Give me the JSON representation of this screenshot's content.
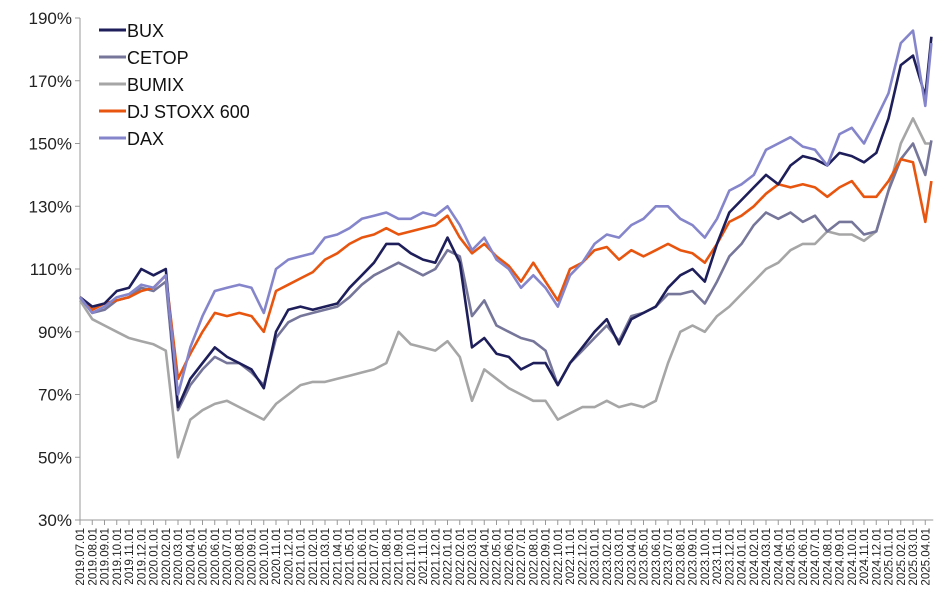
{
  "chart_data": {
    "type": "line",
    "title": "",
    "xlabel": "",
    "ylabel": "",
    "ylim": [
      30,
      190
    ],
    "y_ticks": [
      "30%",
      "50%",
      "70%",
      "90%",
      "110%",
      "130%",
      "150%",
      "170%",
      "190%"
    ],
    "y_tick_values": [
      30,
      50,
      70,
      90,
      110,
      130,
      150,
      170,
      190
    ],
    "x_tick_labels": [
      "2019.07.01",
      "2019.08.01",
      "2019.09.01",
      "2019.10.01",
      "2019.11.01",
      "2019.12.01",
      "2020.01.01",
      "2020.02.01",
      "2020.03.01",
      "2020.04.01",
      "2020.05.01",
      "2020.06.01",
      "2020.07.01",
      "2020.08.01",
      "2020.09.01",
      "2020.10.01",
      "2020.11.01",
      "2020.12.01",
      "2021.01.01",
      "2021.02.01",
      "2021.03.01",
      "2021.04.01",
      "2021.05.01",
      "2021.06.01",
      "2021.07.01",
      "2021.08.01",
      "2021.09.01",
      "2021.10.01",
      "2021.11.01",
      "2021.12.01",
      "2022.01.01",
      "2022.02.01",
      "2022.03.01",
      "2022.04.01",
      "2022.05.01",
      "2022.06.01",
      "2022.07.01",
      "2022.08.01",
      "2022.09.01",
      "2022.10.01",
      "2022.11.01",
      "2022.12.01",
      "2023.01.01",
      "2023.02.01",
      "2023.03.01",
      "2023.04.01",
      "2023.05.01",
      "2023.06.01",
      "2023.07.01",
      "2023.08.01",
      "2023.09.01",
      "2023.10.01",
      "2023.11.01",
      "2023.12.01",
      "2024.01.01",
      "2024.02.01",
      "2024.03.01",
      "2024.04.01",
      "2024.05.01",
      "2024.06.01",
      "2024.07.01",
      "2024.08.01",
      "2024.09.01",
      "2024.10.01",
      "2024.11.01",
      "2024.12.01",
      "2025.01.01",
      "2025.02.01",
      "2025.03.01",
      "2025.04.01"
    ],
    "x_index": [
      0,
      1,
      2,
      3,
      4,
      5,
      6,
      7,
      8,
      9,
      10,
      11,
      12,
      13,
      14,
      15,
      16,
      17,
      18,
      19,
      20,
      21,
      22,
      23,
      24,
      25,
      26,
      27,
      28,
      29,
      30,
      31,
      32,
      33,
      34,
      35,
      36,
      37,
      38,
      39,
      40,
      41,
      42,
      43,
      44,
      45,
      46,
      47,
      48,
      49,
      50,
      51,
      52,
      53,
      54,
      55,
      56,
      57,
      58,
      59,
      60,
      61,
      62,
      63,
      64,
      65,
      66,
      67,
      68,
      69,
      69.5
    ],
    "legend_position": "top-left",
    "grid": false,
    "series": [
      {
        "name": "BUX",
        "color": "#1e1e5a",
        "values": [
          101,
          98,
          99,
          103,
          104,
          110,
          108,
          110,
          66,
          75,
          80,
          85,
          82,
          80,
          78,
          72,
          90,
          97,
          98,
          97,
          98,
          99,
          104,
          108,
          112,
          118,
          118,
          115,
          113,
          112,
          120,
          112,
          85,
          88,
          83,
          82,
          78,
          80,
          80,
          73,
          80,
          85,
          90,
          94,
          86,
          94,
          96,
          98,
          104,
          108,
          110,
          106,
          118,
          128,
          132,
          136,
          140,
          137,
          143,
          146,
          145,
          143,
          147,
          146,
          144,
          147,
          158,
          175,
          178,
          165,
          184
        ]
      },
      {
        "name": "CETOP",
        "color": "#76769a",
        "values": [
          101,
          96,
          97,
          100,
          101,
          104,
          103,
          106,
          65,
          73,
          78,
          82,
          80,
          80,
          77,
          73,
          88,
          93,
          95,
          96,
          97,
          98,
          101,
          105,
          108,
          110,
          112,
          110,
          108,
          110,
          116,
          114,
          95,
          100,
          92,
          90,
          88,
          87,
          84,
          73,
          80,
          84,
          88,
          92,
          87,
          95,
          96,
          98,
          102,
          102,
          103,
          99,
          106,
          114,
          118,
          124,
          128,
          126,
          128,
          125,
          127,
          122,
          125,
          125,
          121,
          122,
          135,
          145,
          150,
          140,
          151
        ]
      },
      {
        "name": "BUMIX",
        "color": "#a6a6a6",
        "values": [
          100,
          94,
          92,
          90,
          88,
          87,
          86,
          84,
          50,
          62,
          65,
          67,
          68,
          66,
          64,
          62,
          67,
          70,
          73,
          74,
          74,
          75,
          76,
          77,
          78,
          80,
          90,
          86,
          85,
          84,
          87,
          82,
          68,
          78,
          75,
          72,
          70,
          68,
          68,
          62,
          64,
          66,
          66,
          68,
          66,
          67,
          66,
          68,
          80,
          90,
          92,
          90,
          95,
          98,
          102,
          106,
          110,
          112,
          116,
          118,
          118,
          122,
          121,
          121,
          119,
          122,
          135,
          150,
          158,
          150,
          150
        ]
      },
      {
        "name": "DJ STOXX 600",
        "color": "#e8550f",
        "values": [
          101,
          97,
          99,
          100,
          101,
          103,
          104,
          108,
          75,
          83,
          90,
          96,
          95,
          96,
          95,
          90,
          103,
          105,
          107,
          109,
          113,
          115,
          118,
          120,
          121,
          123,
          121,
          122,
          123,
          124,
          127,
          120,
          115,
          118,
          114,
          111,
          106,
          112,
          106,
          100,
          110,
          112,
          116,
          117,
          113,
          116,
          114,
          116,
          118,
          116,
          115,
          112,
          118,
          125,
          127,
          130,
          134,
          137,
          136,
          137,
          136,
          133,
          136,
          138,
          133,
          133,
          138,
          145,
          144,
          125,
          138
        ]
      },
      {
        "name": "DAX",
        "color": "#8585cc",
        "values": [
          101,
          96,
          98,
          101,
          102,
          105,
          104,
          108,
          70,
          85,
          95,
          103,
          104,
          105,
          104,
          96,
          110,
          113,
          114,
          115,
          120,
          121,
          123,
          126,
          127,
          128,
          126,
          126,
          128,
          127,
          130,
          124,
          116,
          120,
          113,
          110,
          104,
          108,
          104,
          98,
          108,
          112,
          118,
          121,
          120,
          124,
          126,
          130,
          130,
          126,
          124,
          120,
          126,
          135,
          137,
          140,
          148,
          150,
          152,
          149,
          148,
          143,
          153,
          155,
          150,
          158,
          166,
          182,
          186,
          162,
          182
        ]
      }
    ]
  }
}
